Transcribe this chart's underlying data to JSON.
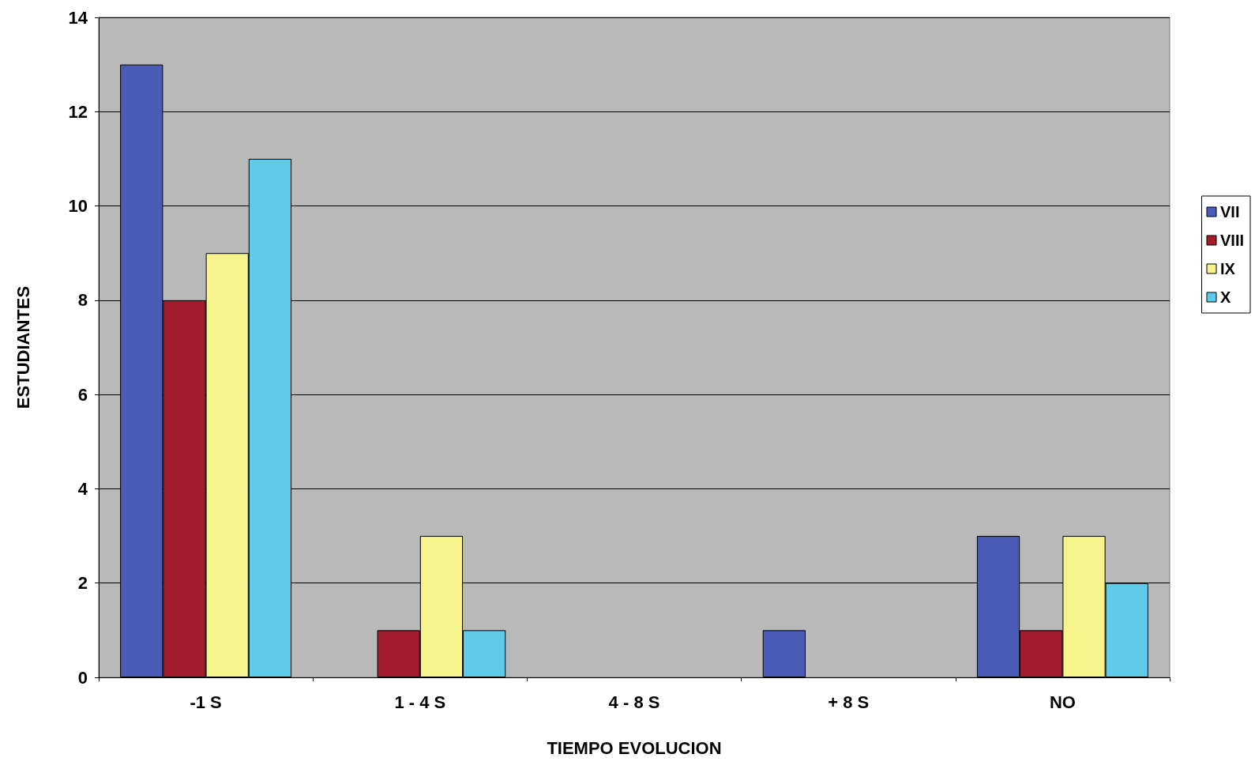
{
  "chart_data": {
    "type": "bar",
    "xlabel": "TIEMPO EVOLUCION",
    "ylabel": "ESTUDIANTES",
    "categories": [
      "-1 S",
      "1 - 4 S",
      "4 - 8 S",
      "+ 8 S",
      "NO"
    ],
    "series": [
      {
        "name": "VII",
        "color": "#4a5cb8",
        "values": [
          13,
          0,
          0,
          1,
          3
        ]
      },
      {
        "name": "VIII",
        "color": "#a31c2e",
        "values": [
          8,
          1,
          0,
          0,
          1
        ]
      },
      {
        "name": "IX",
        "color": "#f6f28c",
        "values": [
          9,
          3,
          0,
          0,
          3
        ]
      },
      {
        "name": "X",
        "color": "#5fcbe8",
        "values": [
          11,
          1,
          0,
          0,
          2
        ]
      }
    ],
    "ylim": [
      0,
      14
    ],
    "yticks": [
      0,
      2,
      4,
      6,
      8,
      10,
      12,
      14
    ],
    "grid": "y",
    "legend": "right"
  }
}
